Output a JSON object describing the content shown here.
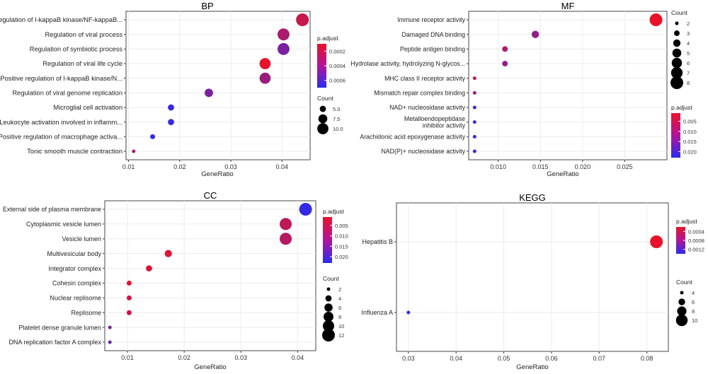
{
  "chart_data": [
    {
      "type": "scatter",
      "title": "BP",
      "xlabel": "GeneRatio",
      "ylabel": "",
      "xlim": [
        0.0095,
        0.0455
      ],
      "xticks": [
        0.01,
        0.02,
        0.03,
        0.04
      ],
      "xtick_labels": [
        "0.01",
        "0.02",
        "0.03",
        "0.04"
      ],
      "grid": true,
      "categories": [
        "Regulation of I-kappaB kinase/NF-kappaB...",
        "Regulation of viral process",
        "Regulation of symbiotic process",
        "Regulation of viral life cycle",
        "Positive regulation of I-kappaB kinase/N...",
        "Regulation of viral genome replication",
        "Microglial cell activation",
        "Leukocyte activation involved in inflamm...",
        "Positive regulation of macrophage activa...",
        "Tonic smooth muscle contraction"
      ],
      "points": [
        {
          "gene_ratio": 0.044,
          "count": 12,
          "p_adjust": 0.0002
        },
        {
          "gene_ratio": 0.0403,
          "count": 11,
          "p_adjust": 0.0003
        },
        {
          "gene_ratio": 0.0403,
          "count": 11,
          "p_adjust": 0.00045
        },
        {
          "gene_ratio": 0.0367,
          "count": 10,
          "p_adjust": 0.0001
        },
        {
          "gene_ratio": 0.0367,
          "count": 10,
          "p_adjust": 0.00035
        },
        {
          "gene_ratio": 0.0257,
          "count": 7,
          "p_adjust": 0.00045
        },
        {
          "gene_ratio": 0.0183,
          "count": 5,
          "p_adjust": 0.00065
        },
        {
          "gene_ratio": 0.0183,
          "count": 5,
          "p_adjust": 0.00065
        },
        {
          "gene_ratio": 0.0147,
          "count": 4,
          "p_adjust": 0.0007
        },
        {
          "gene_ratio": 0.011,
          "count": 3,
          "p_adjust": 0.0003
        }
      ],
      "color_legend": {
        "title": "p.adjust",
        "ticks": [
          0.0002,
          0.0004,
          0.0006
        ],
        "tick_labels": [
          "0.0002",
          "0.0004",
          "0.0006"
        ],
        "range": [
          0.0001,
          0.0007
        ]
      },
      "size_legend": {
        "title": "Count",
        "values": [
          5,
          7.5,
          10
        ],
        "labels": [
          "5.0",
          "7.5",
          "10.0"
        ]
      },
      "size_range": [
        3,
        12
      ],
      "legend_placement": "right"
    },
    {
      "type": "scatter",
      "title": "MF",
      "xlabel": "GeneRatio",
      "ylabel": "",
      "xlim": [
        0.0065,
        0.03
      ],
      "xticks": [
        0.01,
        0.015,
        0.02,
        0.025
      ],
      "xtick_labels": [
        "0.010",
        "0.015",
        "0.020",
        "0.025"
      ],
      "grid": true,
      "categories": [
        "Immune receptor activity",
        "Damaged DNA binding",
        "Peptide antigen binding",
        "Hydrolase activity, hydrolyzing N-glycos...",
        "MHC class II receptor activity",
        "Mismatch repair complex binding",
        "NAD+ nucleosidase activity",
        "Metalloendopeptidase|inhibitor activity",
        "Arachidonic acid epoxygenase activity",
        "NAD(P)+ nucleosidase activity"
      ],
      "points": [
        {
          "gene_ratio": 0.0287,
          "count": 8,
          "p_adjust": 0.001
        },
        {
          "gene_ratio": 0.0144,
          "count": 4,
          "p_adjust": 0.011
        },
        {
          "gene_ratio": 0.0108,
          "count": 3,
          "p_adjust": 0.008
        },
        {
          "gene_ratio": 0.0108,
          "count": 3,
          "p_adjust": 0.011
        },
        {
          "gene_ratio": 0.0072,
          "count": 2,
          "p_adjust": 0.006
        },
        {
          "gene_ratio": 0.0072,
          "count": 2,
          "p_adjust": 0.01
        },
        {
          "gene_ratio": 0.0072,
          "count": 2,
          "p_adjust": 0.02
        },
        {
          "gene_ratio": 0.0072,
          "count": 2,
          "p_adjust": 0.021
        },
        {
          "gene_ratio": 0.0072,
          "count": 2,
          "p_adjust": 0.021
        },
        {
          "gene_ratio": 0.0072,
          "count": 2,
          "p_adjust": 0.022
        }
      ],
      "color_legend": {
        "title": "p.adjust",
        "ticks": [
          0.005,
          0.01,
          0.015,
          0.02
        ],
        "tick_labels": [
          "0.005",
          "0.010",
          "0.015",
          "0.020"
        ],
        "range": [
          0.001,
          0.023
        ]
      },
      "size_legend": {
        "title": "Count",
        "values": [
          2,
          3,
          4,
          5,
          6,
          7,
          8
        ],
        "labels": [
          "2",
          "3",
          "4",
          "5",
          "6",
          "7",
          "8"
        ]
      },
      "size_range": [
        2,
        8
      ],
      "legend_placement": "right"
    },
    {
      "type": "scatter",
      "title": "CC",
      "xlabel": "GeneRatio",
      "ylabel": "",
      "xlim": [
        0.006,
        0.0432
      ],
      "xticks": [
        0.01,
        0.02,
        0.03,
        0.04
      ],
      "xtick_labels": [
        "0.01",
        "0.02",
        "0.03",
        "0.04"
      ],
      "grid": true,
      "categories": [
        "External side of plasma membrane",
        "Cytoplasmic vesicle lumen",
        "Vesicle lumen",
        "Multivesicular body",
        "Integrator complex",
        "Cohesin complex",
        "Nuclear replisome",
        "Replisome",
        "Platelet dense granule lumen",
        "DNA replication factor A complex"
      ],
      "points": [
        {
          "gene_ratio": 0.0414,
          "count": 12,
          "p_adjust": 0.022
        },
        {
          "gene_ratio": 0.0379,
          "count": 11,
          "p_adjust": 0.006
        },
        {
          "gene_ratio": 0.0379,
          "count": 11,
          "p_adjust": 0.007
        },
        {
          "gene_ratio": 0.0172,
          "count": 5,
          "p_adjust": 0.002
        },
        {
          "gene_ratio": 0.0138,
          "count": 4,
          "p_adjust": 0.002
        },
        {
          "gene_ratio": 0.0103,
          "count": 3,
          "p_adjust": 0.002
        },
        {
          "gene_ratio": 0.0103,
          "count": 3,
          "p_adjust": 0.004
        },
        {
          "gene_ratio": 0.0103,
          "count": 3,
          "p_adjust": 0.004
        },
        {
          "gene_ratio": 0.0069,
          "count": 2,
          "p_adjust": 0.014
        },
        {
          "gene_ratio": 0.0069,
          "count": 2,
          "p_adjust": 0.016
        }
      ],
      "color_legend": {
        "title": "p.adjust",
        "ticks": [
          0.005,
          0.01,
          0.015,
          0.02
        ],
        "tick_labels": [
          "0.005",
          "0.010",
          "0.015",
          "0.020"
        ],
        "range": [
          0.001,
          0.023
        ]
      },
      "size_legend": {
        "title": "Count",
        "values": [
          2,
          4,
          6,
          8,
          10,
          12
        ],
        "labels": [
          "2",
          "4",
          "6",
          "8",
          "10",
          "12"
        ]
      },
      "size_range": [
        2,
        12
      ],
      "legend_placement": "right"
    },
    {
      "type": "scatter",
      "title": "KEGG",
      "xlabel": "GeneRatio",
      "ylabel": "",
      "xlim": [
        0.0275,
        0.0845
      ],
      "xticks": [
        0.03,
        0.04,
        0.05,
        0.06,
        0.07,
        0.08
      ],
      "xtick_labels": [
        "0.03",
        "0.04",
        "0.05",
        "0.06",
        "0.07",
        "0.08"
      ],
      "grid": true,
      "categories": [
        "Hepatitis B",
        "Influenza A"
      ],
      "points": [
        {
          "gene_ratio": 0.082,
          "count": 11,
          "p_adjust": 0.0002
        },
        {
          "gene_ratio": 0.03,
          "count": 4,
          "p_adjust": 0.0014
        }
      ],
      "color_legend": {
        "title": "p.adjust",
        "ticks": [
          0.0004,
          0.0008,
          0.0012
        ],
        "tick_labels": [
          "0.0004",
          "0.0008",
          "0.0012"
        ],
        "range": [
          0.0002,
          0.0014
        ]
      },
      "size_legend": {
        "title": "Count",
        "values": [
          4,
          6,
          8,
          10
        ],
        "labels": [
          "4",
          "6",
          "8",
          "10"
        ]
      },
      "size_range": [
        4,
        11
      ],
      "legend_placement": "right"
    }
  ],
  "colors": {
    "low_p": "#e8132b",
    "high_p": "#2a2bf0",
    "grid": "#ebebeb",
    "panel_border": "#444444"
  }
}
